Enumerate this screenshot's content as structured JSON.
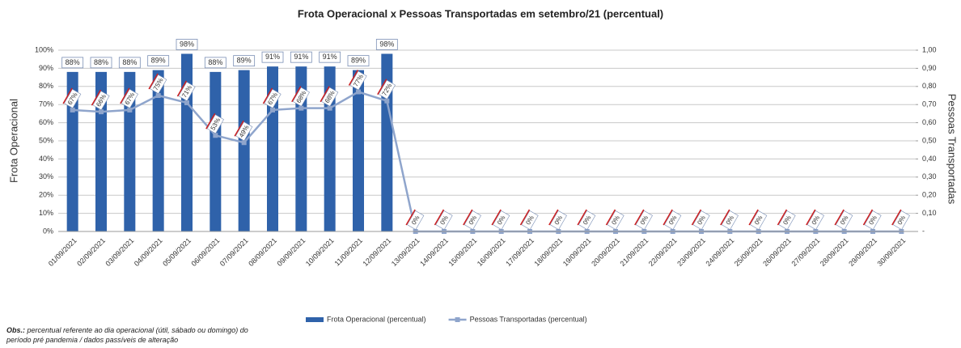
{
  "chart_data": {
    "type": "bar_line",
    "title": "Frota Operacional x Pessoas Transportadas em setembro/21 (percentual)",
    "ylabel": "Frota Operacional",
    "y2label": "Pessoas Transportadas",
    "categories": [
      "01/09/2021",
      "02/09/2021",
      "03/09/2021",
      "04/09/2021",
      "05/09/2021",
      "06/09/2021",
      "07/09/2021",
      "08/09/2021",
      "09/09/2021",
      "10/09/2021",
      "11/09/2021",
      "12/09/2021",
      "13/09/2021",
      "14/09/2021",
      "15/09/2021",
      "16/09/2021",
      "17/09/2021",
      "18/09/2021",
      "19/09/2021",
      "20/09/2021",
      "21/09/2021",
      "22/09/2021",
      "23/09/2021",
      "24/09/2021",
      "25/09/2021",
      "26/09/2021",
      "27/09/2021",
      "28/09/2021",
      "29/09/2021",
      "30/09/2021"
    ],
    "series": [
      {
        "name": "Frota Operacional (percentual)",
        "color": "#2f62aa",
        "kind": "bar",
        "values": [
          88,
          88,
          88,
          89,
          98,
          88,
          89,
          91,
          91,
          91,
          89,
          98,
          null,
          null,
          null,
          null,
          null,
          null,
          null,
          null,
          null,
          null,
          null,
          null,
          null,
          null,
          null,
          null,
          null,
          null
        ],
        "value_labels": [
          "88%",
          "88%",
          "88%",
          "89%",
          "98%",
          "88%",
          "89%",
          "91%",
          "91%",
          "91%",
          "89%",
          "98%",
          null,
          null,
          null,
          null,
          null,
          null,
          null,
          null,
          null,
          null,
          null,
          null,
          null,
          null,
          null,
          null,
          null,
          null
        ]
      },
      {
        "name": "Pessoas Transportadas (percentual)",
        "color": "#8fa5cc",
        "kind": "line",
        "axis": "y2",
        "values": [
          0.67,
          0.66,
          0.67,
          0.75,
          0.71,
          0.53,
          0.49,
          0.67,
          0.68,
          0.68,
          0.77,
          0.72,
          0,
          0,
          0,
          0,
          0,
          0,
          0,
          0,
          0,
          0,
          0,
          0,
          0,
          0,
          0,
          0,
          0,
          0
        ],
        "value_labels": [
          "67%",
          "66%",
          "67%",
          "75%",
          "71%",
          "53%",
          "49%",
          "67%",
          "68%",
          "68%",
          "77%",
          "72%",
          "0%",
          "0%",
          "0%",
          "0%",
          "0%",
          "0%",
          "0%",
          "0%",
          "0%",
          "0%",
          "0%",
          "0%",
          "0%",
          "0%",
          "0%",
          "0%",
          "0%",
          "0%"
        ]
      }
    ],
    "ylim": [
      0,
      100
    ],
    "yticks": [
      {
        "value": 0,
        "label": "0%"
      },
      {
        "value": 10,
        "label": "10%"
      },
      {
        "value": 20,
        "label": "20%"
      },
      {
        "value": 30,
        "label": "30%"
      },
      {
        "value": 40,
        "label": "40%"
      },
      {
        "value": 50,
        "label": "50%"
      },
      {
        "value": 60,
        "label": "60%"
      },
      {
        "value": 70,
        "label": "70%"
      },
      {
        "value": 80,
        "label": "80%"
      },
      {
        "value": 90,
        "label": "90%"
      },
      {
        "value": 100,
        "label": "100%"
      }
    ],
    "y2lim": [
      0,
      1
    ],
    "y2ticks": [
      {
        "value": 0,
        "label": "-"
      },
      {
        "value": 0.1,
        "label": "0,10"
      },
      {
        "value": 0.2,
        "label": "0,20"
      },
      {
        "value": 0.3,
        "label": "0,30"
      },
      {
        "value": 0.4,
        "label": "0,40"
      },
      {
        "value": 0.5,
        "label": "0,50"
      },
      {
        "value": 0.6,
        "label": "0,60"
      },
      {
        "value": 0.7,
        "label": "0,70"
      },
      {
        "value": 0.8,
        "label": "0,80"
      },
      {
        "value": 0.9,
        "label": "0,90"
      },
      {
        "value": 1,
        "label": "1,00"
      }
    ],
    "grid": true,
    "legend": "bottom",
    "obs_label": "Obs.:",
    "obs_text": "percentual referente ao dia operacional (útil, sábado ou domingo) do período pré pandemia / dados passíveis de alteração"
  }
}
